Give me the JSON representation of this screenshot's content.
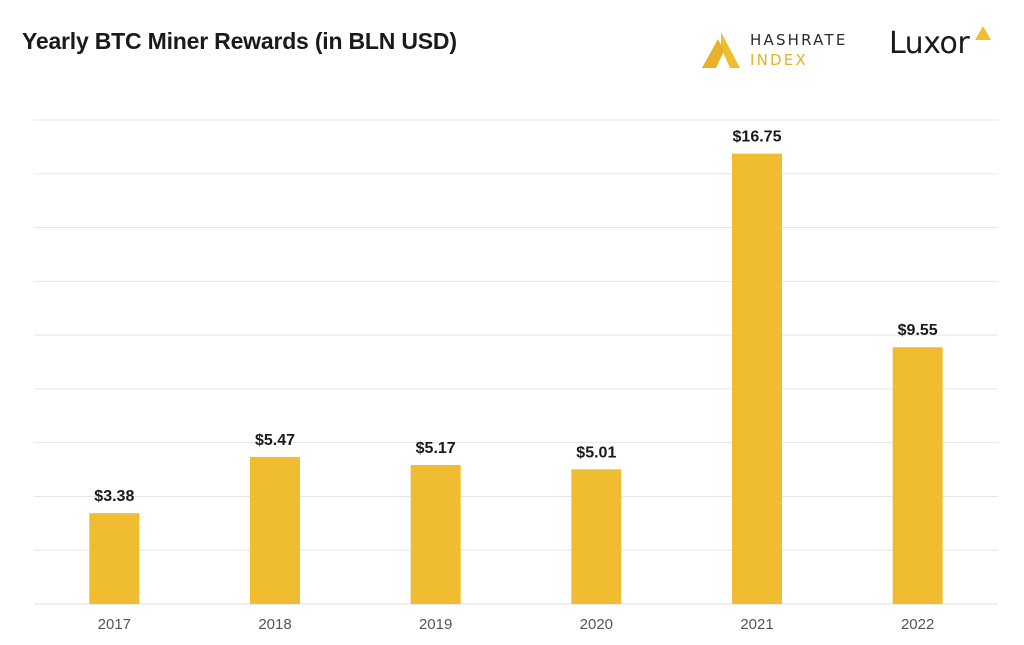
{
  "header": {
    "title": "Yearly BTC Miner Rewards (in BLN USD)"
  },
  "brands": {
    "hashrate_line1": "HASHRATE",
    "hashrate_line2": "INDEX",
    "luxor": "Luxor"
  },
  "colors": {
    "bar": "#f0bd32",
    "grid": "#e6e6e6",
    "axis_text": "#555555",
    "label_text": "#1a1a1a",
    "accent": "#e8b228"
  },
  "chart_data": {
    "type": "bar",
    "title": "Yearly BTC Miner Rewards (in BLN USD)",
    "categories": [
      "2017",
      "2018",
      "2019",
      "2020",
      "2021",
      "2022"
    ],
    "values": [
      3.38,
      5.47,
      5.17,
      5.01,
      16.75,
      9.55
    ],
    "data_labels": [
      "$3.38",
      "$5.47",
      "$5.17",
      "$5.01",
      "$16.75",
      "$9.55"
    ],
    "xlabel": "",
    "ylabel": "",
    "ylim": [
      0,
      18
    ],
    "grid": true,
    "legend": "none"
  }
}
